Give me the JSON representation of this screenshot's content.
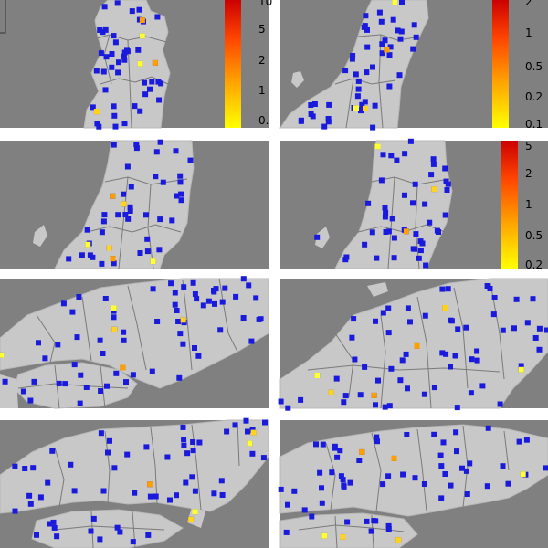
{
  "figure": {
    "background": "#808080",
    "land_color": "#c8c8c8",
    "border_color": "#7a7a7a",
    "station_color": "#1a1adc",
    "highlight_colors": [
      "#ffff33",
      "#ffd21e",
      "#ffa000"
    ],
    "colorbar_gradient": [
      "#ffff00",
      "#ffa500",
      "#ff4500",
      "#cc0000"
    ]
  },
  "panels": [
    {
      "id": "p1",
      "region": "tohoku-north",
      "colorbar": {
        "ticks": [
          "10",
          "5",
          "2",
          "1",
          "0."
        ]
      },
      "highlighted_stations": 6
    },
    {
      "id": "p2",
      "region": "tohoku-east",
      "colorbar": {
        "ticks": [
          "2",
          "1",
          "0.5",
          "0.2",
          "0.1"
        ]
      },
      "highlighted_stations": 4
    },
    {
      "id": "p3",
      "region": "tohoku-central",
      "colorbar": null,
      "highlighted_stations": 6
    },
    {
      "id": "p4",
      "region": "tohoku-central-alt",
      "colorbar": {
        "ticks": [
          "5",
          "2",
          "1",
          "0.5",
          "0.2"
        ]
      },
      "highlighted_stations": 3
    },
    {
      "id": "p5",
      "region": "kansai-west",
      "colorbar": null,
      "highlighted_stations": 5
    },
    {
      "id": "p6",
      "region": "kanto-chubu",
      "colorbar": null,
      "highlighted_stations": 6
    },
    {
      "id": "p7",
      "region": "chugoku-shikoku",
      "colorbar": null,
      "highlighted_stations": 5
    },
    {
      "id": "p8",
      "region": "kinki-tokai",
      "colorbar": null,
      "highlighted_stations": 6
    }
  ]
}
